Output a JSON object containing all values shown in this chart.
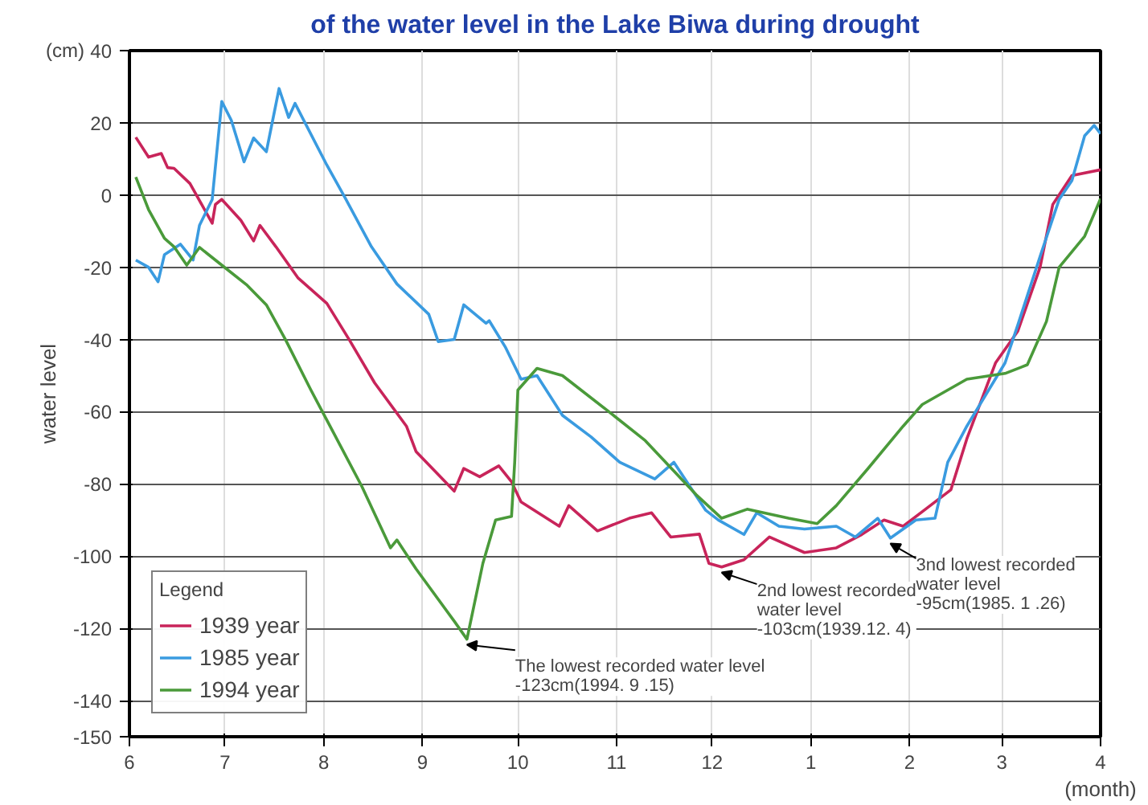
{
  "chart_data": {
    "type": "line",
    "title": "of the water level in the Lake Biwa during drought",
    "ylabel": "water level",
    "xlabel": "(month)",
    "legend_title": "Legend",
    "legend": "bottom left",
    "grid": true,
    "line_style": "solid",
    "marker": "none",
    "xlim": [
      "1939-06-01",
      "1940-04-01"
    ],
    "ylim": [
      -150,
      40
    ],
    "xticks": [
      {
        "value": "1939-06-01",
        "label": "6"
      },
      {
        "value": "1939-07-01",
        "label": "7"
      },
      {
        "value": "1939-08-01",
        "label": "8"
      },
      {
        "value": "1939-09-01",
        "label": "9"
      },
      {
        "value": "1939-10-01",
        "label": "10"
      },
      {
        "value": "1939-11-01",
        "label": "11"
      },
      {
        "value": "1939-12-01",
        "label": "12"
      },
      {
        "value": "1940-01-01",
        "label": "1"
      },
      {
        "value": "1940-02-01",
        "label": "2"
      },
      {
        "value": "1940-03-01",
        "label": "3"
      },
      {
        "value": "1940-04-01",
        "label": "4"
      }
    ],
    "yticks": [
      40,
      20,
      0,
      -20,
      -40,
      -60,
      -80,
      -100,
      -120,
      -140,
      -150
    ],
    "annotations": [
      "(cm)",
      {
        "text": "The lowest recorded water level\n-123cm(1994. 9 .15)",
        "x": "1939-09-15",
        "y": -123
      },
      {
        "text": "2nd lowest recorded\nwater level\n-103cm(1939.12. 4)",
        "x": "1939-12-04",
        "y": -103
      },
      {
        "text": "3nd lowest recorded\nwater level\n-95cm(1985. 1 .26)",
        "x": "1940-01-26",
        "y": -95
      }
    ],
    "series": [
      {
        "name": "1939 year",
        "color": "#c8245a",
        "x": [
          "1939-06-03",
          "1939-06-07",
          "1939-06-11",
          "1939-06-13",
          "1939-06-15",
          "1939-06-20",
          "1939-06-27",
          "1939-06-28",
          "1939-06-30",
          "1939-07-06",
          "1939-07-10",
          "1939-07-12",
          "1939-07-17",
          "1939-07-24",
          "1939-08-02",
          "1939-08-09",
          "1939-08-17",
          "1939-08-27",
          "1939-08-30",
          "1939-09-11",
          "1939-09-14",
          "1939-09-19",
          "1939-09-25",
          "1939-09-29",
          "1939-10-02",
          "1939-10-14",
          "1939-10-17",
          "1939-10-26",
          "1939-11-05",
          "1939-11-12",
          "1939-11-18",
          "1939-11-27",
          "1939-11-30",
          "1939-12-04",
          "1939-12-11",
          "1939-12-19",
          "1939-12-30",
          "1940-01-09",
          "1940-01-17",
          "1940-01-24",
          "1940-01-30",
          "1940-02-06",
          "1940-02-14",
          "1940-02-19",
          "1940-02-28",
          "1940-03-06",
          "1940-03-13",
          "1940-03-17",
          "1940-03-23",
          "1940-04-01"
        ],
        "values": [
          16,
          10.5,
          11.5,
          7.6,
          7.4,
          3.2,
          -7.8,
          -2.6,
          -1.2,
          -7,
          -12.7,
          -8.4,
          -14.3,
          -23,
          -30,
          -40,
          -52,
          -64,
          -71,
          -82,
          -75.7,
          -78,
          -75,
          -79.4,
          -85,
          -91.7,
          -86,
          -93,
          -89.5,
          -88,
          -94.7,
          -93.9,
          -102,
          -103,
          -101,
          -94.7,
          -99,
          -97.7,
          -94,
          -90,
          -91.7,
          -87,
          -81.6,
          -67.5,
          -46.5,
          -37.7,
          -20,
          -2.6,
          5.4,
          7
        ]
      },
      {
        "name": "1985 year",
        "color": "#3a9be0",
        "x": [
          "1939-06-03",
          "1939-06-07",
          "1939-06-10",
          "1939-06-12",
          "1939-06-17",
          "1939-06-21",
          "1939-06-23",
          "1939-06-27",
          "1939-06-30",
          "1939-07-03",
          "1939-07-07",
          "1939-07-10",
          "1939-07-14",
          "1939-07-18",
          "1939-07-21",
          "1939-07-23",
          "1939-08-02",
          "1939-08-08",
          "1939-08-16",
          "1939-08-24",
          "1939-09-03",
          "1939-09-06",
          "1939-09-11",
          "1939-09-14",
          "1939-09-21",
          "1939-09-22",
          "1939-09-27",
          "1939-10-02",
          "1939-10-07",
          "1939-10-15",
          "1939-10-24",
          "1939-11-02",
          "1939-11-13",
          "1939-11-19",
          "1939-11-29",
          "1939-12-03",
          "1939-12-11",
          "1939-12-15",
          "1939-12-22",
          "1939-12-30",
          "1940-01-09",
          "1940-01-15",
          "1940-01-22",
          "1940-01-26",
          "1940-02-03",
          "1940-02-09",
          "1940-02-13",
          "1940-02-19",
          "1940-03-02",
          "1940-03-06",
          "1940-03-13",
          "1940-03-19",
          "1940-03-23",
          "1940-03-27",
          "1940-03-30",
          "1940-04-01"
        ],
        "values": [
          -18,
          -20,
          -24,
          -16.5,
          -13.6,
          -18,
          -8.4,
          -1.2,
          25.9,
          20.7,
          9.2,
          15.8,
          12,
          29.5,
          21.5,
          25.4,
          8.3,
          -1.2,
          -14.3,
          -24.6,
          -33,
          -40.6,
          -40,
          -30.4,
          -35.5,
          -34.8,
          -42,
          -51,
          -50,
          -61,
          -67,
          -74,
          -78.6,
          -74,
          -87.3,
          -90,
          -94,
          -88,
          -91.7,
          -92.5,
          -91.7,
          -94.7,
          -89.5,
          -95,
          -90,
          -89.5,
          -74,
          -64,
          -46.5,
          -36,
          -17,
          -1.2,
          4,
          16.4,
          19.3,
          17
        ]
      },
      {
        "name": "1994 year",
        "color": "#4a9a3a",
        "x": [
          "1939-06-03",
          "1939-06-07",
          "1939-06-12",
          "1939-06-15",
          "1939-06-19",
          "1939-06-23",
          "1939-06-30",
          "1939-07-08",
          "1939-07-14",
          "1939-07-20",
          "1939-07-28",
          "1939-08-03",
          "1939-08-13",
          "1939-08-22",
          "1939-08-24",
          "1939-08-30",
          "1939-09-11",
          "1939-09-15",
          "1939-09-20",
          "1939-09-24",
          "1939-09-29",
          "1939-09-30",
          "1939-10-01",
          "1939-10-07",
          "1939-10-15",
          "1939-10-29",
          "1939-11-10",
          "1939-11-26",
          "1939-12-04",
          "1939-12-12",
          "1939-12-25",
          "1940-01-03",
          "1940-01-09",
          "1940-01-19",
          "1940-01-30",
          "1940-02-05",
          "1940-02-19",
          "1940-03-02",
          "1940-03-09",
          "1940-03-15",
          "1940-03-19",
          "1940-03-27",
          "1940-04-01"
        ],
        "values": [
          5,
          -4,
          -12,
          -14.3,
          -19.4,
          -14.5,
          -19.4,
          -25,
          -30.4,
          -40,
          -54,
          -64,
          -80.7,
          -97.7,
          -95.5,
          -103.5,
          -118,
          -123,
          -102,
          -90,
          -89,
          -74,
          -54,
          -48,
          -50,
          -59.6,
          -68,
          -83,
          -89.5,
          -87,
          -89.5,
          -91,
          -86,
          -75.7,
          -64,
          -58,
          -51,
          -49.4,
          -47,
          -35,
          -20,
          -11.4,
          -1
        ]
      }
    ]
  }
}
